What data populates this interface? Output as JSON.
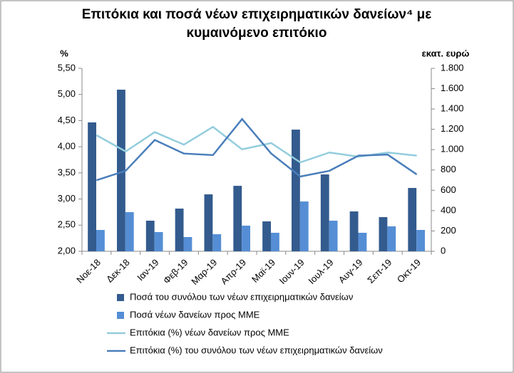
{
  "chart_data": {
    "type": "bar_line",
    "title": "Επιτόκια και ποσά νέων επιχειρηματικών δανείων⁴ με κυμαινόμενο επιτόκιο",
    "ylabel": "%",
    "y2label": "εκατ. ευρώ",
    "categories": [
      "Νοε-18",
      "Δεκ-18",
      "Ιαν-19",
      "Φεβ-19",
      "Μαρ-19",
      "Απρ-19",
      "Μαϊ-19",
      "Ιουν-19",
      "Ιουλ-19",
      "Αυγ-19",
      "Σεπ-19",
      "Οκτ-19"
    ],
    "series": [
      {
        "name": "Ποσά του συνόλου των νέων επιχειρηματικών δανείων",
        "kind": "bar",
        "axis": "y2",
        "color": "#335b8e",
        "values": [
          1268,
          1590,
          301,
          420,
          560,
          644,
          294,
          1197,
          756,
          392,
          336,
          623
        ]
      },
      {
        "name": "Ποσά νέων δανείων προς ΜΜΕ",
        "kind": "bar",
        "axis": "y2",
        "color": "#558ed5",
        "values": [
          210,
          385,
          189,
          140,
          168,
          252,
          182,
          490,
          301,
          182,
          245,
          210
        ]
      },
      {
        "name": "Επιτόκια (%) νέων δανείων προς ΜΜΕ",
        "kind": "line",
        "axis": "y",
        "color": "#93cddd",
        "values": [
          4.22,
          3.91,
          4.28,
          4.04,
          4.38,
          3.95,
          4.07,
          3.7,
          3.89,
          3.81,
          3.89,
          3.83
        ]
      },
      {
        "name": "Επιτόκια (%) του συνόλου των νέων επιχειρηματικών δανείων",
        "kind": "line",
        "axis": "y",
        "color": "#4a7ebb",
        "values": [
          3.36,
          3.54,
          4.13,
          3.87,
          3.84,
          4.53,
          3.87,
          3.43,
          3.54,
          3.83,
          3.85,
          3.47
        ]
      }
    ],
    "ylim": [
      2,
      5.5
    ],
    "yticks": [
      {
        "value": 2,
        "label": "2,00"
      },
      {
        "value": 2.5,
        "label": "2,50"
      },
      {
        "value": 3,
        "label": "3,00"
      },
      {
        "value": 3.5,
        "label": "3,50"
      },
      {
        "value": 4,
        "label": "4,00"
      },
      {
        "value": 4.5,
        "label": "4,50"
      },
      {
        "value": 5,
        "label": "5,00"
      },
      {
        "value": 5.5,
        "label": "5,50"
      }
    ],
    "y2lim": [
      0,
      1800
    ],
    "y2ticks": [
      0,
      200,
      400,
      600,
      800,
      {
        "value": 1000,
        "label": "1.000"
      },
      {
        "value": 1200,
        "label": "1.200"
      },
      {
        "value": 1400,
        "label": "1.400"
      },
      {
        "value": 1600,
        "label": "1.600"
      },
      {
        "value": 1800,
        "label": "1.800"
      }
    ],
    "grid": false,
    "legend": "bottom"
  }
}
